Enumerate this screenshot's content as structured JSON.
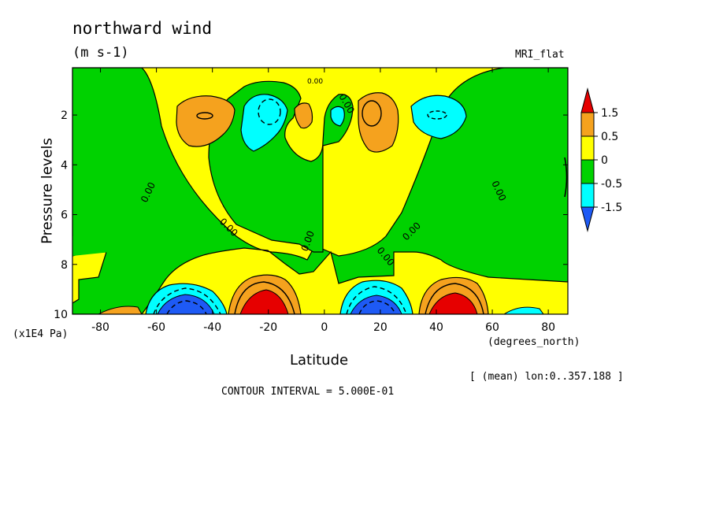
{
  "chart_data": {
    "type": "heatmap",
    "title": "northward wind",
    "units": "(m s-1)",
    "model_label": "MRI_flat",
    "xlabel": "Latitude",
    "x_units": "(degrees_north)",
    "ylabel": "Pressure levels",
    "y_units": "(x1E4 Pa)",
    "averaging_note": "[ (mean) lon:0..357.188 ]",
    "contour_interval_text": "CONTOUR INTERVAL = 5.000E-01",
    "contour_zero_label": "0.00",
    "xlim": [
      -90,
      87
    ],
    "ylim": [
      0.1,
      10
    ],
    "y_inverted": true,
    "x_ticks": [
      -80,
      -60,
      -40,
      -20,
      0,
      20,
      40,
      60,
      80
    ],
    "x_tick_labels": [
      "-80",
      "-60",
      "-40",
      "-20",
      "0",
      "20",
      "40",
      "60",
      "80"
    ],
    "y_ticks": [
      2,
      4,
      6,
      8,
      10
    ],
    "y_tick_labels": [
      "2",
      "4",
      "6",
      "8",
      "10"
    ],
    "colorbar": {
      "levels": [
        -1.5,
        -0.5,
        0,
        0.5,
        1.5
      ],
      "labels": [
        "1.5",
        "0.5",
        "0",
        "-0.5",
        "-1.5"
      ],
      "colors": [
        "#e60000",
        "#f5a21e",
        "#ffff00",
        "#00d200",
        "#00ffff",
        "#1e5af5"
      ]
    },
    "features": [
      {
        "lat": -42,
        "p": 2.0,
        "value": 0.6
      },
      {
        "lat": -18,
        "p": 2.0,
        "value": -0.8
      },
      {
        "lat": 18,
        "p": 1.9,
        "value": 1.1
      },
      {
        "lat": 44,
        "p": 2.0,
        "value": -0.6
      },
      {
        "lat": -46,
        "p": 9.8,
        "value": -2.0
      },
      {
        "lat": -19,
        "p": 9.7,
        "value": 2.0
      },
      {
        "lat": 19,
        "p": 9.8,
        "value": -1.8
      },
      {
        "lat": 46,
        "p": 9.7,
        "value": 1.8
      }
    ]
  }
}
